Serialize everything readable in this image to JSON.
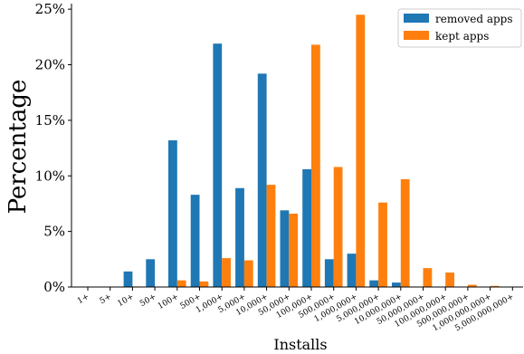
{
  "chart_data": {
    "type": "bar",
    "xlabel": "Installs",
    "ylabel": "Percentage",
    "ylim": [
      0,
      25.5
    ],
    "yticks": [
      0,
      5,
      10,
      15,
      20,
      25
    ],
    "ytick_format": "percent",
    "grid": false,
    "legend_position": "top-right",
    "categories": [
      "1+",
      "5+",
      "10+",
      "50+",
      "100+",
      "500+",
      "1,000+",
      "5,000+",
      "10,000+",
      "50,000+",
      "100,000+",
      "500,000+",
      "1,000,000+",
      "5,000,000+",
      "10,000,000+",
      "50,000,000+",
      "100,000,000+",
      "500,000,000+",
      "1,000,000,000+",
      "5,000,000,000+"
    ],
    "series": [
      {
        "name": "removed apps",
        "color": "#1f77b4",
        "values": [
          0.0,
          0.0,
          1.4,
          2.5,
          13.2,
          8.3,
          21.9,
          8.9,
          19.2,
          6.9,
          10.6,
          2.5,
          3.0,
          0.6,
          0.4,
          0.0,
          0.0,
          0.0,
          0.0,
          0.0
        ]
      },
      {
        "name": "kept apps",
        "color": "#ff7f0e",
        "values": [
          0.0,
          0.0,
          0.05,
          0.0,
          0.6,
          0.5,
          2.6,
          2.4,
          9.2,
          6.6,
          21.8,
          10.8,
          24.5,
          7.6,
          9.7,
          1.7,
          1.3,
          0.2,
          0.1,
          0.0
        ]
      }
    ]
  }
}
